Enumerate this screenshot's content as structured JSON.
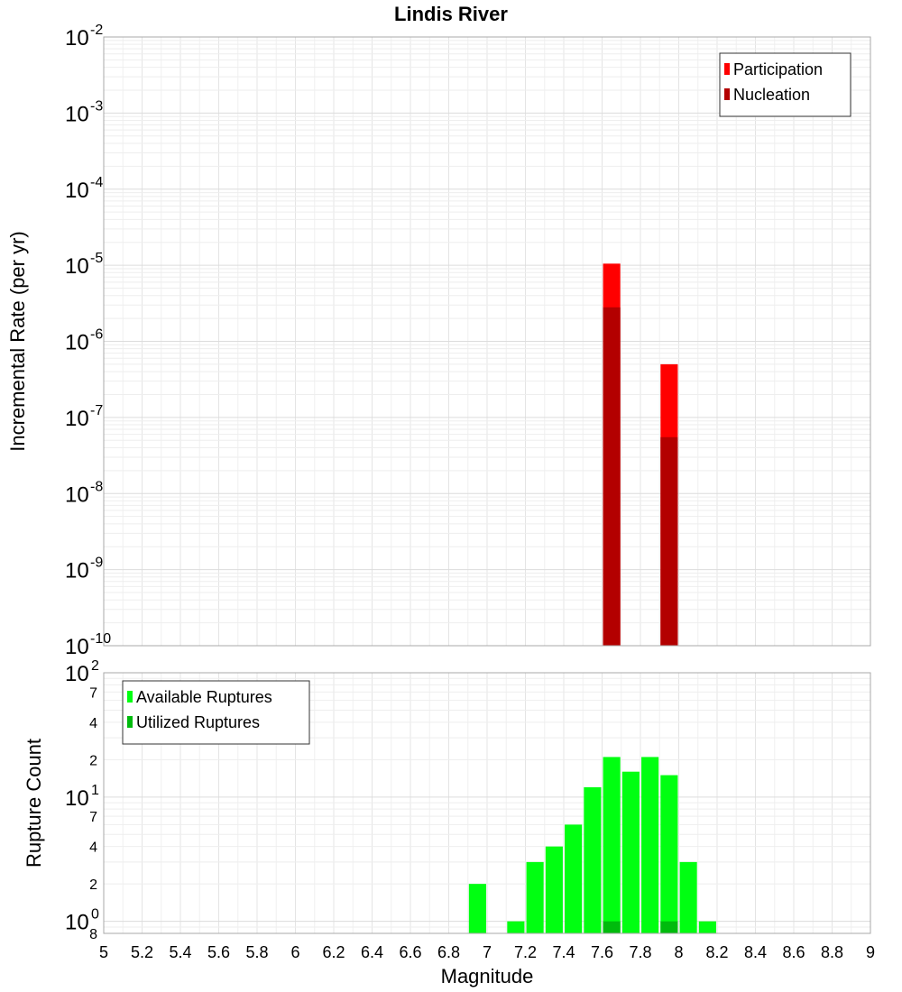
{
  "chart_data": [
    {
      "type": "bar",
      "title": "Lindis River",
      "xlabel": "",
      "ylabel": "Incremental Rate (per yr)",
      "yscale": "log",
      "xlim": [
        5,
        9
      ],
      "ylim": [
        1e-10,
        0.01
      ],
      "bar_width": 0.09,
      "legend_position": "top-right",
      "grid": true,
      "y_ticks": [
        {
          "base": "10",
          "exp": "-2",
          "value": 0.01
        },
        {
          "base": "10",
          "exp": "-3",
          "value": 0.001
        },
        {
          "base": "10",
          "exp": "-4",
          "value": 0.0001
        },
        {
          "base": "10",
          "exp": "-5",
          "value": 1e-05
        },
        {
          "base": "10",
          "exp": "-6",
          "value": 1e-06
        },
        {
          "base": "10",
          "exp": "-7",
          "value": 1e-07
        },
        {
          "base": "10",
          "exp": "-8",
          "value": 1e-08
        },
        {
          "base": "10",
          "exp": "-9",
          "value": 1e-09
        },
        {
          "base": "10",
          "exp": "-10",
          "value": 1e-10
        }
      ],
      "series": [
        {
          "name": "Participation",
          "color": "#ff0000",
          "points": [
            {
              "x": 7.65,
              "y": 1.05e-05
            },
            {
              "x": 7.95,
              "y": 5e-07
            }
          ]
        },
        {
          "name": "Nucleation",
          "color": "#b30000",
          "points": [
            {
              "x": 7.65,
              "y": 2.8e-06
            },
            {
              "x": 7.95,
              "y": 5.5e-08
            }
          ]
        }
      ]
    },
    {
      "type": "bar",
      "title": "",
      "xlabel": "Magnitude",
      "ylabel": "Rupture Count",
      "yscale": "log",
      "xlim": [
        5,
        9
      ],
      "ylim": [
        0.8,
        100
      ],
      "bar_width": 0.09,
      "legend_position": "top-left",
      "grid": true,
      "x_ticks": [
        "5",
        "5.2",
        "5.4",
        "5.6",
        "5.8",
        "6",
        "6.2",
        "6.4",
        "6.6",
        "6.8",
        "7",
        "7.2",
        "7.4",
        "7.6",
        "7.8",
        "8",
        "8.2",
        "8.4",
        "8.6",
        "8.8",
        "9"
      ],
      "y_major_ticks": [
        {
          "base": "10",
          "exp": "2",
          "value": 100
        },
        {
          "base": "10",
          "exp": "1",
          "value": 10
        },
        {
          "base": "10",
          "exp": "0",
          "value": 1
        }
      ],
      "y_minor_ticks": [
        {
          "label": "7",
          "value": 70
        },
        {
          "label": "4",
          "value": 40
        },
        {
          "label": "2",
          "value": 20
        },
        {
          "label": "7",
          "value": 7
        },
        {
          "label": "4",
          "value": 4
        },
        {
          "label": "2",
          "value": 2
        },
        {
          "label": "8",
          "value": 0.8
        }
      ],
      "series": [
        {
          "name": "Available Ruptures",
          "color": "#00ff11",
          "points": [
            {
              "x": 6.95,
              "y": 2
            },
            {
              "x": 7.15,
              "y": 1
            },
            {
              "x": 7.25,
              "y": 3
            },
            {
              "x": 7.35,
              "y": 4
            },
            {
              "x": 7.45,
              "y": 6
            },
            {
              "x": 7.55,
              "y": 12
            },
            {
              "x": 7.65,
              "y": 21
            },
            {
              "x": 7.75,
              "y": 16
            },
            {
              "x": 7.85,
              "y": 21
            },
            {
              "x": 7.95,
              "y": 15
            },
            {
              "x": 8.05,
              "y": 3
            },
            {
              "x": 8.15,
              "y": 1
            }
          ]
        },
        {
          "name": "Utilized Ruptures",
          "color": "#00bb0d",
          "points": [
            {
              "x": 7.65,
              "y": 1
            },
            {
              "x": 7.95,
              "y": 1
            }
          ]
        }
      ]
    }
  ]
}
